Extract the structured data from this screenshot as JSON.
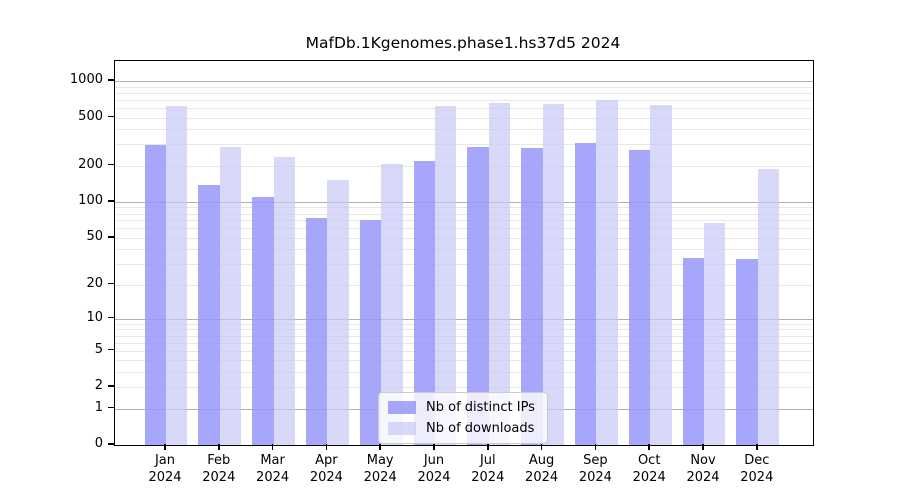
{
  "chart_data": {
    "type": "bar",
    "title": "MafDb.1Kgenomes.phase1.hs37d5 2024",
    "xlabel": "",
    "ylabel": "",
    "y_scale": "log10(v+1)",
    "y_ticks": [
      0,
      1,
      2,
      5,
      10,
      20,
      50,
      100,
      200,
      500,
      1000
    ],
    "ylim": [
      0,
      1470
    ],
    "grid": true,
    "legend_position": "bottom-center-inside",
    "categories": [
      "Jan",
      "Feb",
      "Mar",
      "Apr",
      "May",
      "Jun",
      "Jul",
      "Aug",
      "Sep",
      "Oct",
      "Nov",
      "Dec"
    ],
    "category_year": "2024",
    "series": [
      {
        "name": "Nb of distinct IPs",
        "color": "#9696fa",
        "fill": "rgba(150,150,250,0.85)",
        "values": [
          295,
          138,
          110,
          74,
          70,
          218,
          287,
          282,
          308,
          270,
          34,
          33
        ]
      },
      {
        "name": "Nb of downloads",
        "color": "#c8c8f5",
        "fill": "rgba(200,200,245,0.70)",
        "values": [
          620,
          283,
          235,
          151,
          207,
          620,
          656,
          648,
          695,
          631,
          67,
          186
        ]
      }
    ],
    "grid_major_color": "#b0b0b0",
    "grid_minor_color": "#e7e7e7"
  }
}
